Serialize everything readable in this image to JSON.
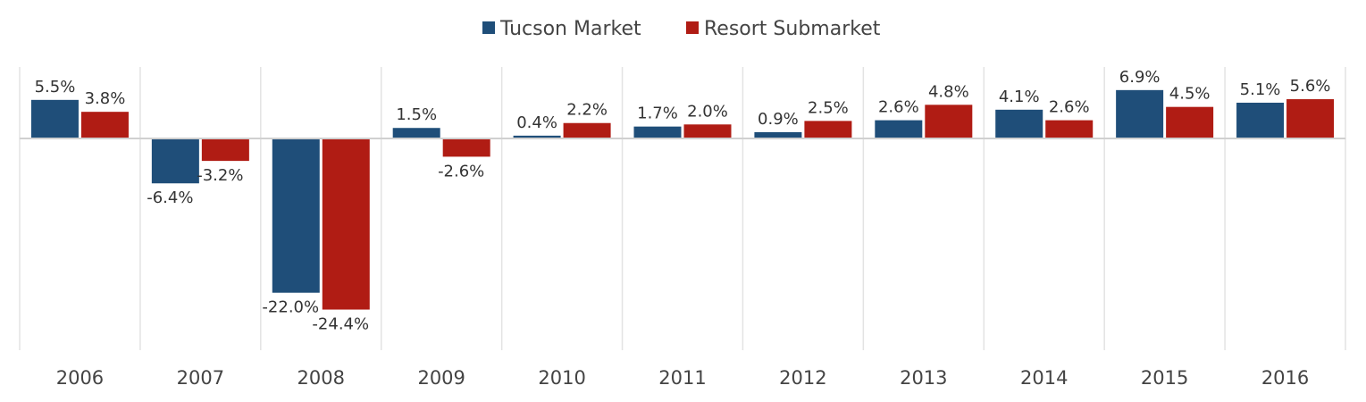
{
  "chart_data": {
    "type": "bar",
    "categories": [
      "2006",
      "2007",
      "2008",
      "2009",
      "2010",
      "2011",
      "2012",
      "2013",
      "2014",
      "2015",
      "2016"
    ],
    "series": [
      {
        "name": "Tucson Market",
        "color": "#1f4e79",
        "values": [
          5.5,
          -6.4,
          -22.0,
          1.5,
          0.4,
          1.7,
          0.9,
          2.6,
          4.1,
          6.9,
          5.1
        ],
        "labels": [
          "5.5%",
          "-6.4%",
          "-22.0%",
          "1.5%",
          "0.4%",
          "1.7%",
          "0.9%",
          "2.6%",
          "4.1%",
          "6.9%",
          "5.1%"
        ]
      },
      {
        "name": "Resort Submarket",
        "color": "#b01c14",
        "values": [
          3.8,
          -3.2,
          -24.4,
          -2.6,
          2.2,
          2.0,
          2.5,
          4.8,
          2.6,
          4.5,
          5.6
        ],
        "labels": [
          "3.8%",
          "-3.2%",
          "-24.4%",
          "-2.6%",
          "2.2%",
          "2.0%",
          "2.5%",
          "4.8%",
          "2.6%",
          "4.5%",
          "5.6%"
        ]
      }
    ],
    "title": "",
    "xlabel": "",
    "ylabel": "",
    "ylim": [
      -30,
      10
    ],
    "grid": "vertical separators only",
    "legend_position": "top-center"
  }
}
